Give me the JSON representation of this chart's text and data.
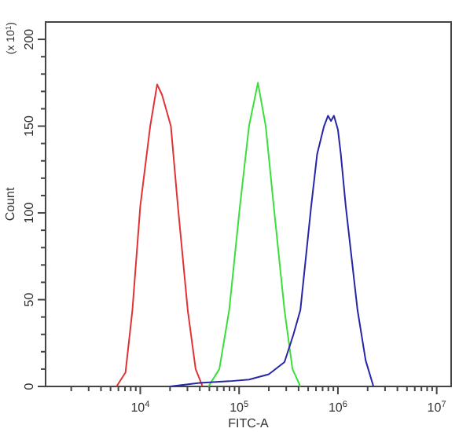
{
  "chart_data": {
    "type": "line",
    "xlabel": "FITC-A",
    "ylabel": "Count",
    "annotations": [
      "(x 10$^{1}$)"
    ],
    "log": "x",
    "grid": false,
    "marker": "none",
    "line_style": "solid",
    "xlim": [
      1100,
      14000000
    ],
    "ylim": [
      0,
      210
    ],
    "xticks": [
      {
        "value": 2000,
        "label": null
      },
      {
        "value": 3000,
        "label": null
      },
      {
        "value": 4000,
        "label": null
      },
      {
        "value": 5000,
        "label": null
      },
      {
        "value": 6000,
        "label": null
      },
      {
        "value": 7000,
        "label": null
      },
      {
        "value": 8000,
        "label": null
      },
      {
        "value": 9000,
        "label": null
      },
      {
        "value": 10000,
        "label": "10$^{4}$"
      },
      {
        "value": 20000,
        "label": null
      },
      {
        "value": 30000,
        "label": null
      },
      {
        "value": 40000,
        "label": null
      },
      {
        "value": 50000,
        "label": null
      },
      {
        "value": 60000,
        "label": null
      },
      {
        "value": 70000,
        "label": null
      },
      {
        "value": 80000,
        "label": null
      },
      {
        "value": 90000,
        "label": null
      },
      {
        "value": 100000,
        "label": "10$^{5}$"
      },
      {
        "value": 200000,
        "label": null
      },
      {
        "value": 300000,
        "label": null
      },
      {
        "value": 400000,
        "label": null
      },
      {
        "value": 500000,
        "label": null
      },
      {
        "value": 600000,
        "label": null
      },
      {
        "value": 700000,
        "label": null
      },
      {
        "value": 800000,
        "label": null
      },
      {
        "value": 900000,
        "label": null
      },
      {
        "value": 1000000,
        "label": "10$^{6}$"
      },
      {
        "value": 2000000,
        "label": null
      },
      {
        "value": 3000000,
        "label": null
      },
      {
        "value": 4000000,
        "label": null
      },
      {
        "value": 5000000,
        "label": null
      },
      {
        "value": 6000000,
        "label": null
      },
      {
        "value": 7000000,
        "label": null
      },
      {
        "value": 8000000,
        "label": null
      },
      {
        "value": 9000000,
        "label": null
      },
      {
        "value": 10000000,
        "label": "10$^{7}$"
      }
    ],
    "yticks": [
      0,
      {
        "value": 10,
        "label": null
      },
      {
        "value": 20,
        "label": null
      },
      {
        "value": 30,
        "label": null
      },
      {
        "value": 40,
        "label": null
      },
      50,
      {
        "value": 60,
        "label": null
      },
      {
        "value": 70,
        "label": null
      },
      {
        "value": 80,
        "label": null
      },
      {
        "value": 90,
        "label": null
      },
      100,
      {
        "value": 110,
        "label": null
      },
      {
        "value": 120,
        "label": null
      },
      {
        "value": 130,
        "label": null
      },
      {
        "value": 140,
        "label": null
      },
      150,
      {
        "value": 160,
        "label": null
      },
      {
        "value": 170,
        "label": null
      },
      {
        "value": 180,
        "label": null
      },
      {
        "value": 190,
        "label": null
      },
      200
    ],
    "series": [
      {
        "color": "#e03434",
        "x": [
          5750,
          7080,
          8320,
          10000,
          12600,
          14800,
          16600,
          20400,
          24000,
          30200,
          36300,
          42700
        ],
        "values": [
          0,
          8,
          44,
          104,
          150,
          174,
          168,
          150,
          104,
          44,
          10,
          0
        ]
      },
      {
        "color": "#3adf3a",
        "x": [
          49000,
          63100,
          79400,
          102000,
          126000,
          155000,
          186000,
          224000,
          288000,
          347000,
          417000
        ],
        "values": [
          0,
          10,
          44,
          104,
          150,
          175,
          150,
          104,
          44,
          10,
          0
        ]
      },
      {
        "color": "#2626a8",
        "x": [
          20000,
          39800,
          79400,
          126000,
          200000,
          288000,
          355000,
          417000,
          537000,
          617000,
          724000,
          794000,
          851000,
          912000,
          1000000,
          1070000,
          1200000,
          1580000,
          1910000,
          2290000
        ],
        "values": [
          0,
          2,
          3,
          4,
          7,
          14,
          30,
          44,
          104,
          134,
          150,
          156,
          153,
          156,
          148,
          134,
          104,
          44,
          15,
          0
        ]
      }
    ]
  }
}
